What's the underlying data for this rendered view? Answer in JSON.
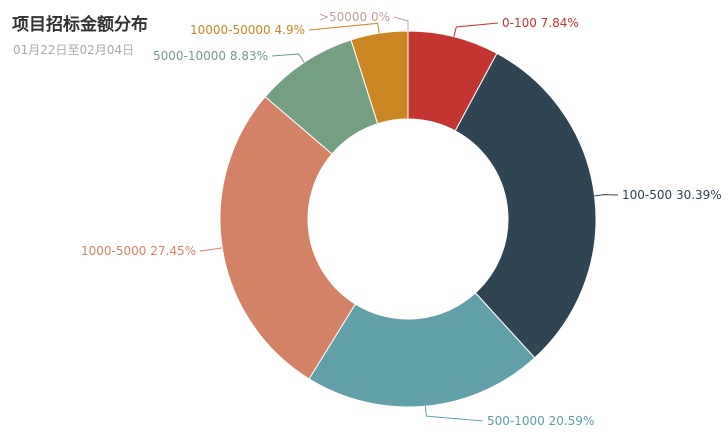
{
  "chart_data": {
    "type": "pie",
    "title": "项目招标金额分布",
    "subtitle": "01月22日至02月04日",
    "categories": [
      "0-100",
      "100-500",
      "500-1000",
      "1000-5000",
      "5000-10000",
      "10000-50000",
      ">50000"
    ],
    "values": [
      7.84,
      30.39,
      20.59,
      27.45,
      8.83,
      4.9,
      0
    ],
    "labels": [
      "0-100 7.84%",
      "100-500 30.39%",
      "500-1000 20.59%",
      "1000-5000 27.45%",
      "5000-10000 8.83%",
      "10000-50000 4.9%",
      ">50000 0%"
    ],
    "unit": "%",
    "colors": [
      "#c23531",
      "#2f4554",
      "#61a0a8",
      "#d48265",
      "#749f83",
      "#ca8622",
      "#bda29a"
    ],
    "legend": "none"
  }
}
